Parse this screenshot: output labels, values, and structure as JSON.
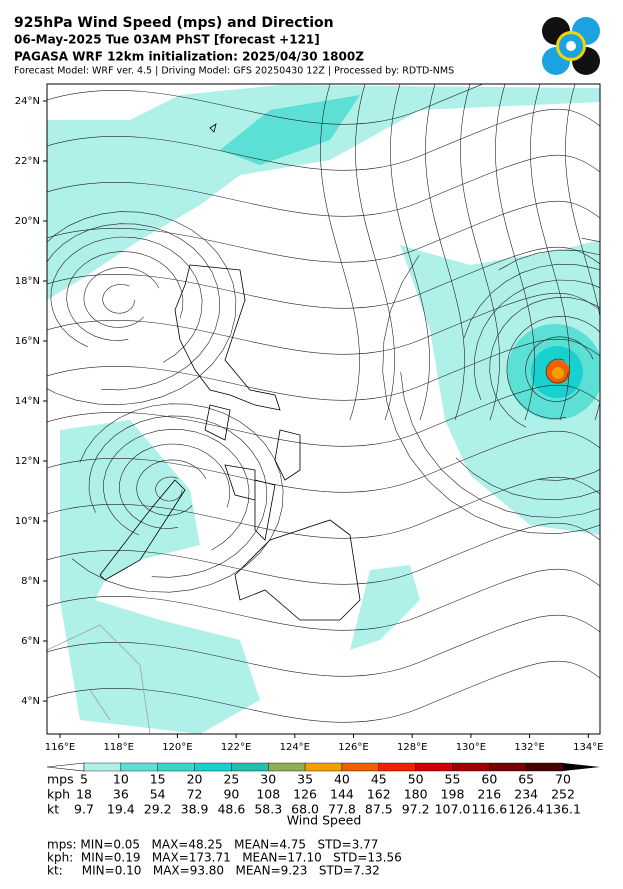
{
  "header": {
    "title": "925hPa Wind Speed (mps) and Direction",
    "forecast": "06-May-2025 Tue 03AM PhST [forecast +121]",
    "initialization": "PAGASA WRF 12km initialization: 2025/04/30 1800Z",
    "model_info": "Forecast Model: WRF ver. 4.5 | Driving Model: GFS 20250430 12Z | Processed by: RDTD-NMS"
  },
  "map": {
    "lat_labels": [
      "24°N",
      "22°N",
      "20°N",
      "18°N",
      "16°N",
      "14°N",
      "12°N",
      "10°N",
      "8°N",
      "6°N",
      "4°N"
    ],
    "lon_labels": [
      "116°E",
      "118°E",
      "120°E",
      "122°E",
      "124°E",
      "126°E",
      "128°E",
      "130°E",
      "132°E",
      "134°E"
    ]
  },
  "colorbar": {
    "title": "Wind Speed",
    "colors": [
      "#ffffff",
      "#aff0e8",
      "#5ce0d5",
      "#3ad6c8",
      "#18d0d0",
      "#20bfae",
      "#8fae55",
      "#f0a000",
      "#f06000",
      "#f02000",
      "#d00000",
      "#a00000",
      "#7a0000",
      "#4a0000",
      "#000000"
    ],
    "rows": [
      {
        "unit": "mps",
        "labels": [
          "5",
          "10",
          "15",
          "20",
          "25",
          "30",
          "35",
          "40",
          "45",
          "50",
          "55",
          "60",
          "65",
          "70"
        ]
      },
      {
        "unit": "kph",
        "labels": [
          "18",
          "36",
          "54",
          "72",
          "90",
          "108",
          "126",
          "144",
          "162",
          "180",
          "198",
          "216",
          "234",
          "252"
        ]
      },
      {
        "unit": "kt",
        "labels": [
          "9.7",
          "19.4",
          "29.2",
          "38.9",
          "48.6",
          "58.3",
          "68.0",
          "77.8",
          "87.5",
          "97.2",
          "107.0",
          "116.6",
          "126.4",
          "136.1"
        ]
      }
    ]
  },
  "stats": [
    "mps: MIN=0.05   MAX=48.25   MEAN=4.75   STD=3.77",
    "kph:  MIN=0.19   MAX=173.71   MEAN=17.10   STD=13.56",
    "kt:     MIN=0.10   MAX=93.80   MEAN=9.23   STD=7.32"
  ]
}
